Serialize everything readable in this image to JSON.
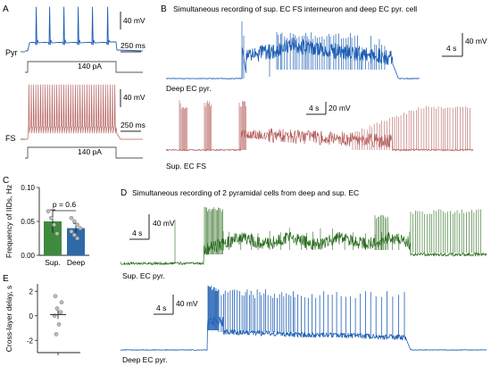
{
  "colors": {
    "blue": "#1f5fb4",
    "red": "#b5605f",
    "green": "#2a6b1f",
    "gray": "#777777",
    "bar_green": "#3f8a3f",
    "bar_blue": "#2e6aa8"
  },
  "panel_A": {
    "letter": "A",
    "pyr_label": "Pyr",
    "fs_label": "FS",
    "pyr_scale_mv": "40 mV",
    "pyr_scale_ms": "250 ms",
    "pyr_step": "140 pA",
    "fs_scale_mv": "40 mV",
    "fs_scale_ms": "250 ms",
    "fs_step": "140 pA"
  },
  "panel_B": {
    "letter": "B",
    "title": "Simultaneous recording of sup. EC FS interneuron and deep EC pyr. cell",
    "deep_label": "Deep EC pyr.",
    "deep_scale_mv": "40 mV",
    "deep_scale_s": "4 s",
    "sup_label": "Sup. EC FS",
    "sup_scale_s": "4 s",
    "sup_scale_mv": "20 mV"
  },
  "panel_C": {
    "letter": "C",
    "pvalue": "p = 0.6"
  },
  "panel_D": {
    "letter": "D",
    "title": "Simultaneous recording of 2 pyramidal cells from deep and sup. EC",
    "sup_label": "Sup. EC pyr.",
    "sup_scale_mv": "40 mV",
    "sup_scale_s": "4 s",
    "deep_label": "Deep EC pyr.",
    "deep_scale_mv": "40 mV",
    "deep_scale_s": "4 s"
  },
  "panel_E": {
    "letter": "E"
  },
  "chart_data": [
    {
      "type": "bar",
      "panel": "C",
      "ylabel": "Frequency of IIDs, Hz",
      "categories": [
        "Sup.",
        "Deep"
      ],
      "values": [
        0.05,
        0.04
      ],
      "errors": [
        0.017,
        0.007
      ],
      "ylim": [
        0,
        0.1
      ],
      "yticks": [
        "0.00",
        "0.05",
        "0.10"
      ],
      "points": [
        [
          0.065,
          0.055,
          0.045,
          0.032
        ],
        [
          0.055,
          0.05,
          0.045,
          0.04,
          0.035,
          0.03,
          0.025
        ]
      ]
    },
    {
      "type": "scatter",
      "panel": "E",
      "ylabel": "Cross-layer delay, s",
      "values": [
        1.6,
        1.1,
        0.6,
        0.3,
        0.0,
        -0.7,
        -1.5
      ],
      "mean": 0.1,
      "ylim": [
        -3,
        2.6
      ],
      "yticks": [
        "2",
        "0",
        "-2"
      ]
    }
  ]
}
